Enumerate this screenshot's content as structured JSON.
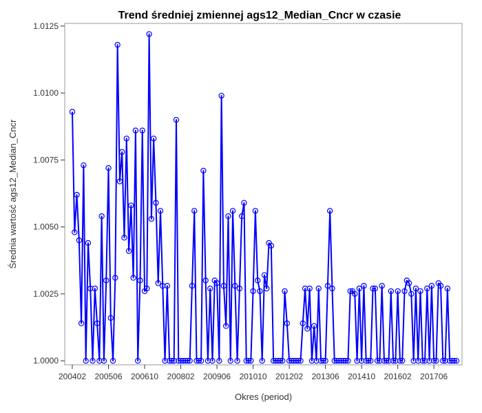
{
  "chart_data": {
    "type": "line",
    "title": "Trend średniej zmiennej ags12_Median_Cncr w czasie",
    "xlabel": "Okres (period)",
    "ylabel": "Średnia wartość ags12_Median_Cncr",
    "ylim": [
      0.99985,
      1.0126
    ],
    "y_ticks": [
      "1.0000",
      "1.0025",
      "1.0050",
      "1.0075",
      "1.0100",
      "1.0125"
    ],
    "x_tick_labels": [
      "200402",
      "200506",
      "200610",
      "200802",
      "200906",
      "201010",
      "201202",
      "201306",
      "201410",
      "201602",
      "201706"
    ],
    "x_tick_indices": [
      0,
      16,
      32,
      48,
      64,
      80,
      96,
      112,
      128,
      144,
      160
    ],
    "grid": false,
    "line_color": "#0000ff",
    "series": [
      {
        "values": [
          1.0093,
          1.0048,
          1.0062,
          1.0045,
          1.0014,
          1.0073,
          1.0,
          1.0044,
          1.0027,
          1.0,
          1.0027,
          1.0014,
          1.0,
          1.0054,
          1.0,
          1.003,
          1.0072,
          1.0016,
          1.0,
          1.0031,
          1.0118,
          1.0067,
          1.0078,
          1.0046,
          1.0083,
          1.0041,
          1.0058,
          1.0031,
          1.0086,
          1.0,
          1.003,
          1.0086,
          1.0026,
          1.0027,
          1.0122,
          1.0053,
          1.0083,
          1.0059,
          1.0029,
          1.0056,
          1.0028,
          1.0,
          1.0028,
          1.0,
          1.0,
          1.0,
          1.009,
          1.0,
          1.0,
          1.0,
          1.0,
          1.0,
          1.0,
          1.0028,
          1.0056,
          1.0,
          1.0,
          1.0,
          1.0071,
          1.003,
          1.0,
          1.0027,
          1.0,
          1.003,
          1.0029,
          1.0,
          1.0099,
          1.0028,
          1.0013,
          1.0054,
          1.0,
          1.0056,
          1.0028,
          1.0,
          1.0027,
          1.0054,
          1.0059,
          1.0,
          1.0,
          1.0,
          1.0026,
          1.0056,
          1.003,
          1.0026,
          1.0,
          1.0032,
          1.0027,
          1.0044,
          1.0043,
          1.0,
          1.0,
          1.0,
          1.0,
          1.0,
          1.0026,
          1.0014,
          1.0,
          1.0,
          1.0,
          1.0,
          1.0,
          1.0,
          1.0014,
          1.0027,
          1.0012,
          1.0027,
          1.0,
          1.0013,
          1.0,
          1.0027,
          1.0,
          1.0,
          1.0,
          1.0028,
          1.0056,
          1.0027,
          1.0,
          1.0,
          1.0,
          1.0,
          1.0,
          1.0,
          1.0,
          1.0026,
          1.0026,
          1.0025,
          1.0,
          1.0027,
          1.0,
          1.0028,
          1.0,
          1.0,
          1.0,
          1.0027,
          1.0027,
          1.0,
          1.0,
          1.0028,
          1.0,
          1.0,
          1.0,
          1.0026,
          1.0,
          1.0,
          1.0026,
          1.0,
          1.0,
          1.0026,
          1.003,
          1.0029,
          1.0025,
          1.0,
          1.0027,
          1.0,
          1.0026,
          1.0,
          1.0,
          1.0027,
          1.0,
          1.0028,
          1.0,
          1.0,
          1.0029,
          1.0028,
          1.0,
          1.0,
          1.0027,
          1.0,
          1.0,
          1.0,
          1.0
        ]
      }
    ]
  }
}
